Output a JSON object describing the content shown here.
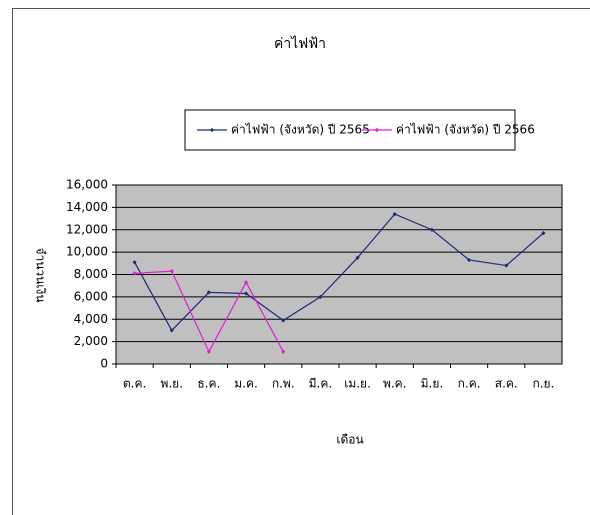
{
  "chart_data": {
    "type": "line",
    "title": "ค่าไฟฟ้า",
    "x_label": "เดือน",
    "y_label": "จำนวนเงิน",
    "categories": [
      "ต.ค.",
      "พ.ย.",
      "ธ.ค.",
      "ม.ค.",
      "ก.พ.",
      "มี.ค.",
      "เม.ย.",
      "พ.ค.",
      "มิ.ย.",
      "ก.ค.",
      "ส.ค.",
      "ก.ย."
    ],
    "series": [
      {
        "name": "ค่าไฟฟ้า (จังหวัด) ปี 2565",
        "color": "#1f2a7a",
        "values": [
          9100,
          3000,
          6400,
          6300,
          3900,
          6000,
          9500,
          13400,
          12000,
          9300,
          8800,
          11700
        ]
      },
      {
        "name": "ค่าไฟฟ้า (จังหวัด) ปี 2566",
        "color": "#e020d0",
        "values": [
          8100,
          8300,
          1100,
          7300,
          1100,
          null,
          null,
          null,
          null,
          null,
          null,
          null
        ]
      }
    ],
    "ylim": [
      0,
      16000
    ],
    "yticks": [
      0,
      {
        "value": 2000,
        "label": "2,000"
      },
      {
        "value": 4000,
        "label": "4,000"
      },
      {
        "value": 6000,
        "label": "6,000"
      },
      {
        "value": 8000,
        "label": "8,000"
      },
      {
        "value": 10000,
        "label": "10,000"
      },
      {
        "value": 12000,
        "label": "12,000"
      },
      {
        "value": 14000,
        "label": "14,000"
      },
      {
        "value": 16000,
        "label": "16,000"
      }
    ],
    "grid": true,
    "legend": "top",
    "plot_background": "#c0c0c0"
  }
}
